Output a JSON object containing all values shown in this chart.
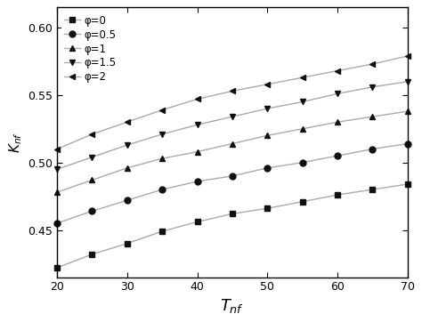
{
  "xlabel": "$T_{nf}$",
  "ylabel": "$K_{nf}$",
  "xlim": [
    20,
    70
  ],
  "ylim": [
    0.415,
    0.615
  ],
  "x_ticks": [
    20,
    30,
    40,
    50,
    60,
    70
  ],
  "y_ticks": [
    0.45,
    0.5,
    0.55,
    0.6
  ],
  "series": [
    {
      "label": "φ=0",
      "marker": "s",
      "x": [
        20,
        25,
        30,
        35,
        40,
        45,
        50,
        55,
        60,
        65,
        70
      ],
      "y": [
        0.422,
        0.432,
        0.44,
        0.449,
        0.456,
        0.462,
        0.466,
        0.471,
        0.476,
        0.48,
        0.484
      ]
    },
    {
      "label": "φ=0.5",
      "marker": "o",
      "x": [
        20,
        25,
        30,
        35,
        40,
        45,
        50,
        55,
        60,
        65,
        70
      ],
      "y": [
        0.455,
        0.464,
        0.472,
        0.48,
        0.486,
        0.49,
        0.496,
        0.5,
        0.505,
        0.51,
        0.514
      ]
    },
    {
      "label": "φ=1",
      "marker": "^",
      "x": [
        20,
        25,
        30,
        35,
        40,
        45,
        50,
        55,
        60,
        65,
        70
      ],
      "y": [
        0.478,
        0.487,
        0.496,
        0.503,
        0.508,
        0.514,
        0.52,
        0.525,
        0.53,
        0.534,
        0.538
      ]
    },
    {
      "label": "φ=1.5",
      "marker": "v",
      "x": [
        20,
        25,
        30,
        35,
        40,
        45,
        50,
        55,
        60,
        65,
        70
      ],
      "y": [
        0.495,
        0.504,
        0.513,
        0.521,
        0.528,
        0.534,
        0.54,
        0.545,
        0.551,
        0.556,
        0.56
      ]
    },
    {
      "label": "φ=2",
      "marker": "<",
      "x": [
        20,
        25,
        30,
        35,
        40,
        45,
        50,
        55,
        60,
        65,
        70
      ],
      "y": [
        0.51,
        0.521,
        0.53,
        0.539,
        0.547,
        0.553,
        0.558,
        0.563,
        0.568,
        0.573,
        0.579
      ]
    }
  ],
  "line_color": "#aaaaaa",
  "marker_color": "#111111",
  "markersize": 5,
  "linewidth": 1.0,
  "legend_loc": "upper left",
  "legend_fontsize": 8.5,
  "xlabel_fontsize": 13,
  "ylabel_fontsize": 11,
  "tick_fontsize": 9,
  "background_color": "#ffffff"
}
